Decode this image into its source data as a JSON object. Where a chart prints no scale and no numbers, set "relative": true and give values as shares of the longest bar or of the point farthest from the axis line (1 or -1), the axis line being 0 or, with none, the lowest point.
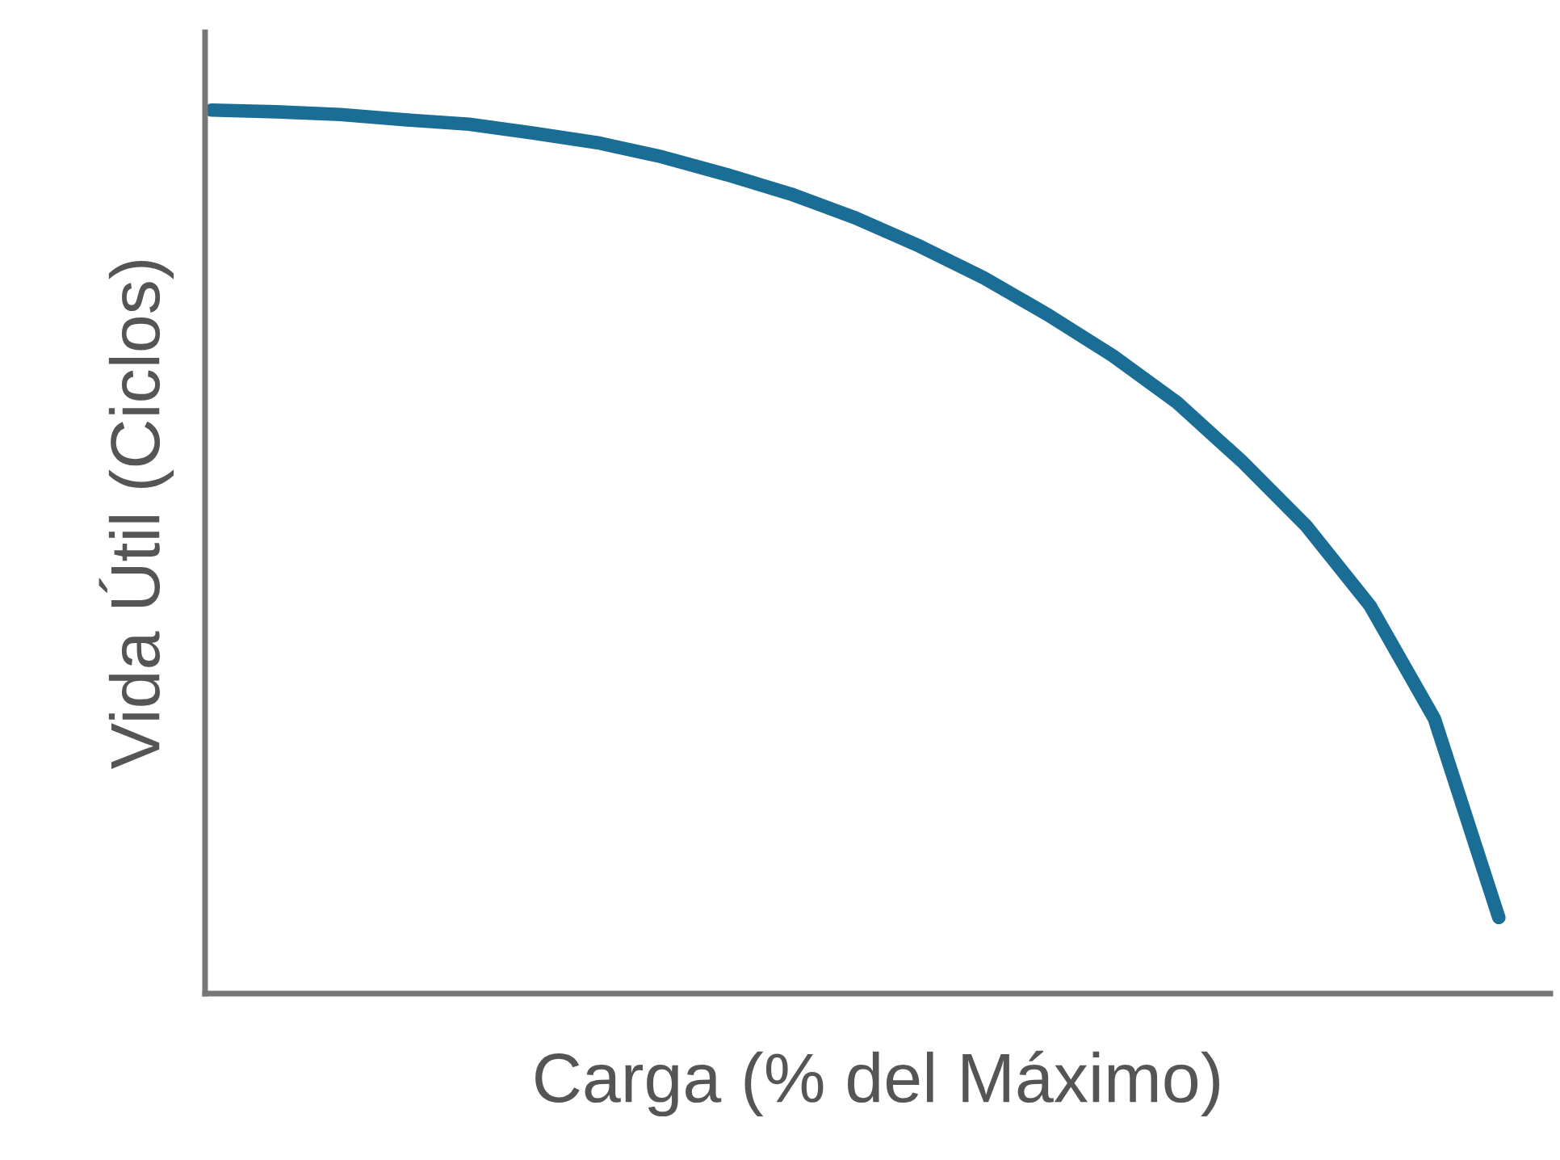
{
  "chart_data": {
    "type": "line",
    "relative": true,
    "xlabel": "Carga (% del Máximo)",
    "ylabel": "Vida Útil (Ciclos)",
    "categories": [
      null,
      null,
      null,
      null,
      null,
      null,
      null,
      null,
      null,
      null,
      null,
      null,
      null,
      null,
      null,
      null,
      null,
      null,
      null,
      null,
      null
    ],
    "series": [
      {
        "color": "#1a6e96",
        "values": [
          1.0,
          0.998,
          0.995,
          0.989,
          0.984,
          0.974,
          0.963,
          0.947,
          0.927,
          0.905,
          0.878,
          0.846,
          0.81,
          0.768,
          0.722,
          0.669,
          0.603,
          0.53,
          0.439,
          0.311,
          0.086
        ]
      }
    ],
    "grid": false,
    "legend": false,
    "marker": "none",
    "line_style": "solid"
  }
}
